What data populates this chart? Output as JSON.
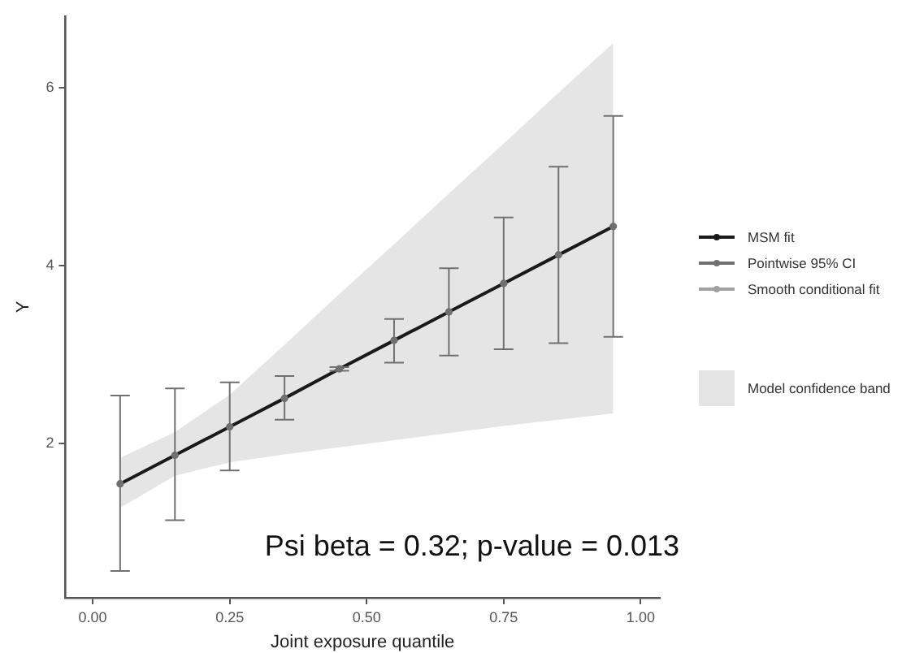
{
  "chart_data": {
    "type": "line",
    "xlabel": "Joint exposure quantile",
    "ylabel": "Y",
    "x": [
      0.05,
      0.15,
      0.25,
      0.35,
      0.45,
      0.55,
      0.65,
      0.75,
      0.85,
      0.95
    ],
    "xlim": [
      -0.05,
      1.035
    ],
    "xticks": [
      {
        "value": 0,
        "label": "0.00"
      },
      0.25,
      {
        "value": 0.5,
        "label": "0.50"
      },
      0.75,
      {
        "value": 1,
        "label": "1.00"
      }
    ],
    "ylim": [
      0.27,
      6.8
    ],
    "yticks": [
      2,
      4,
      6
    ],
    "grid": false,
    "legend": "right",
    "marker": "circle",
    "series": [
      {
        "name": "MSM fit",
        "color": "#1a1a1a",
        "marker": "none",
        "values": [
          1.55,
          1.87,
          2.19,
          2.51,
          2.84,
          3.16,
          3.48,
          3.8,
          4.12,
          4.44
        ],
        "lower": [
          1.28,
          1.64,
          1.79,
          1.88,
          1.96,
          2.04,
          2.12,
          2.2,
          2.27,
          2.34
        ],
        "upper": [
          1.84,
          2.13,
          2.55,
          3.11,
          3.68,
          4.24,
          4.81,
          5.37,
          5.94,
          6.5
        ]
      },
      {
        "name": "Pointwise 95% CI",
        "type": "scatter",
        "color": "#707070",
        "values": [
          1.55,
          1.87,
          2.19,
          2.51,
          2.84,
          3.16,
          3.48,
          3.8,
          4.12,
          4.44
        ],
        "errors": [
          [
            0.57,
            2.54
          ],
          [
            1.14,
            2.62
          ],
          [
            1.7,
            2.69
          ],
          [
            2.27,
            2.76
          ],
          [
            2.82,
            2.86
          ],
          [
            2.91,
            3.4
          ],
          [
            2.99,
            3.97
          ],
          [
            3.06,
            4.54
          ],
          [
            3.13,
            5.11
          ],
          [
            3.2,
            5.68
          ]
        ]
      },
      {
        "name": "Smooth conditional fit",
        "type": "line",
        "color": "#a0a0a0",
        "marker": "none",
        "values": [
          null,
          null,
          null,
          null,
          null,
          null,
          null,
          null,
          null,
          null
        ]
      }
    ],
    "annotations": [
      "Psi beta = 0.32; p-value = 0.013",
      "Model confidence band"
    ]
  }
}
